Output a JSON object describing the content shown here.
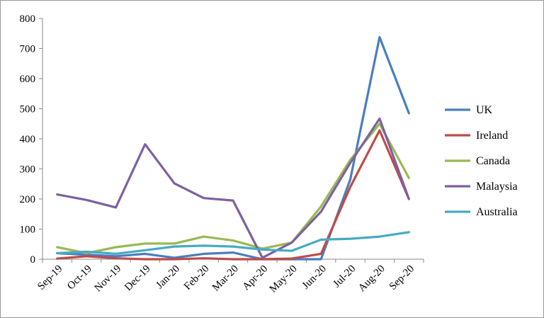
{
  "chart_data": {
    "type": "line",
    "title": "",
    "xlabel": "",
    "ylabel": "",
    "categories": [
      "Sep-19",
      "Oct-19",
      "Nov-19",
      "Dec-19",
      "Jan-20",
      "Feb-20",
      "Mar-20",
      "Apr-20",
      "May-20",
      "Jun-20",
      "Jul-20",
      "Aug-20",
      "Sep-20"
    ],
    "ylim": [
      0,
      800
    ],
    "yticks": [
      0,
      100,
      200,
      300,
      400,
      500,
      600,
      700,
      800
    ],
    "grid": false,
    "legend_position": "right",
    "series": [
      {
        "name": "UK",
        "color": "#4a7ebb",
        "values": [
          20,
          15,
          10,
          18,
          5,
          18,
          22,
          0,
          0,
          0,
          265,
          738,
          485
        ]
      },
      {
        "name": "Ireland",
        "color": "#be4b48",
        "values": [
          2,
          10,
          3,
          0,
          0,
          3,
          0,
          0,
          2,
          18,
          240,
          428,
          200
        ]
      },
      {
        "name": "Canada",
        "color": "#98b954",
        "values": [
          40,
          20,
          40,
          52,
          52,
          75,
          62,
          35,
          55,
          175,
          330,
          450,
          270
        ]
      },
      {
        "name": "Malaysia",
        "color": "#7d60a0",
        "values": [
          215,
          197,
          172,
          382,
          252,
          203,
          195,
          5,
          55,
          158,
          320,
          467,
          200
        ]
      },
      {
        "name": "Australia",
        "color": "#46aac5",
        "values": [
          20,
          25,
          18,
          30,
          42,
          45,
          42,
          32,
          28,
          65,
          68,
          75,
          90
        ]
      }
    ]
  }
}
